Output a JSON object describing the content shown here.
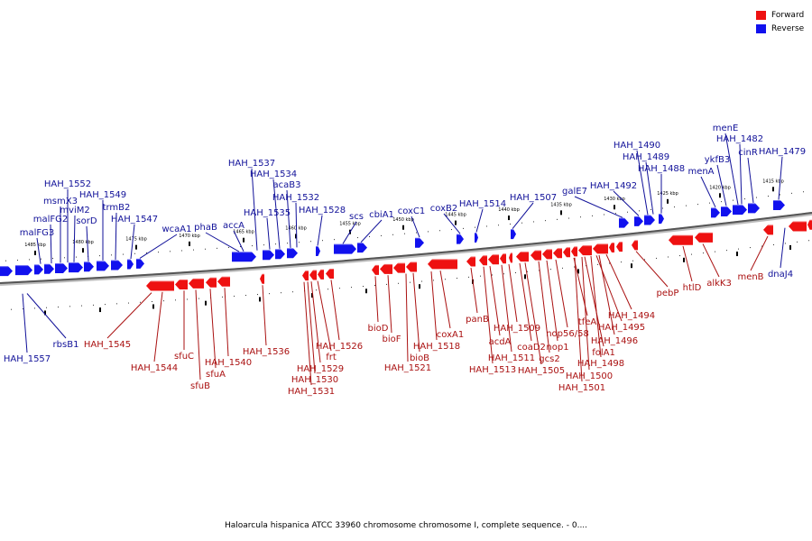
{
  "caption": "Haloarcula hispanica ATCC 33960 chromosome chromosome I, complete sequence. - 0....",
  "legend": [
    {
      "label": "Forward",
      "color": "#ee1111"
    },
    {
      "label": "Reverse",
      "color": "#1111ee"
    }
  ],
  "colors": {
    "forward": "#ee1111",
    "reverse": "#1111ee",
    "forward_label": "#aa1111",
    "reverse_label": "#111199"
  },
  "ticks": [
    "1485 kbp",
    "1480 kbp",
    "1475 kbp",
    "1470 kbp",
    "1465 kbp",
    "1460 kbp",
    "1455 kbp",
    "1450 kbp",
    "1445 kbp",
    "1440 kbp",
    "1435 kbp",
    "1430 kbp",
    "1425 kbp",
    "1420 kbp",
    "1415 kbp"
  ],
  "reverse_genes": [
    "HAH_1557",
    "malFG3",
    "malFG2",
    "msmX3",
    "mviM2",
    "HAH_1552",
    "sorD",
    "HAH_1549",
    "trmB2",
    "HAH_1547",
    "rbsB1",
    "wcaA1",
    "phaB",
    "accA",
    "HAH_1537",
    "HAH_1535",
    "HAH_1534",
    "acaB3",
    "HAH_1532",
    "HAH_1528",
    "scs",
    "cbiA1",
    "coxC1",
    "coxB2",
    "HAH_1514",
    "HAH_1507",
    "galE7",
    "HAH_1492",
    "HAH_1490",
    "HAH_1489",
    "HAH_1488",
    "menA",
    "ykfB3",
    "menE",
    "HAH_1482",
    "cinR",
    "HAH_1479",
    "dnaJ4"
  ],
  "forward_genes": [
    "HAH_1545",
    "HAH_1544",
    "sfuC",
    "sfuB",
    "sfuA",
    "HAH_1540",
    "HAH_1536",
    "HAH_1529",
    "HAH_1530",
    "HAH_1531",
    "frt",
    "HAH_1526",
    "bioD",
    "bioF",
    "HAH_1521",
    "bioB",
    "HAH_1518",
    "coxA1",
    "panB",
    "acdA",
    "HAH_1513",
    "HAH_1511",
    "HAH_1509",
    "HAH_1505",
    "coaD2",
    "gcs2",
    "nop1",
    "nop56/58",
    "tfeA",
    "folA1",
    "HAH_1495",
    "HAH_1494",
    "HAH_1496",
    "HAH_1498",
    "HAH_1500",
    "HAH_1501",
    "pebP",
    "htlD",
    "alkK3",
    "menB"
  ]
}
